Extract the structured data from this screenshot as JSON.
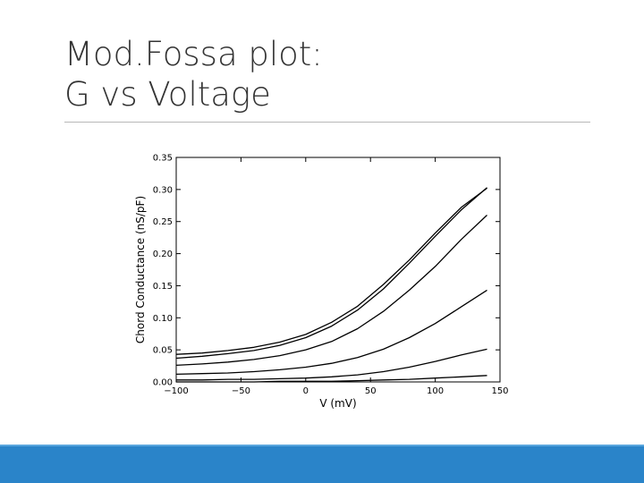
{
  "slide": {
    "title_line1": "Mod.Fossa plot:",
    "title_line2": "G vs Voltage",
    "footer_color": "#2a84c9"
  },
  "chart_data": {
    "type": "line",
    "title": "",
    "xlabel": "V (mV)",
    "ylabel": "Chord Conductance (nS/pF)",
    "xlim": [
      -100,
      150
    ],
    "ylim": [
      0.0,
      0.35
    ],
    "xticks": [
      -100,
      -50,
      0,
      50,
      100,
      150
    ],
    "xtick_labels": [
      "−100",
      "−50",
      "0",
      "50",
      "100",
      "150"
    ],
    "yticks": [
      0.0,
      0.05,
      0.1,
      0.15,
      0.2,
      0.25,
      0.3,
      0.35
    ],
    "ytick_labels": [
      "0.00",
      "0.05",
      "0.10",
      "0.15",
      "0.20",
      "0.25",
      "0.30",
      "0.35"
    ],
    "grid": false,
    "line_color": "#000000",
    "x": [
      -100,
      -80,
      -60,
      -40,
      -20,
      0,
      20,
      40,
      60,
      80,
      100,
      120,
      140
    ],
    "series": [
      {
        "values": [
          0.043,
          0.045,
          0.049,
          0.054,
          0.062,
          0.074,
          0.093,
          0.118,
          0.152,
          0.19,
          0.232,
          0.272,
          0.302
        ]
      },
      {
        "values": [
          0.037,
          0.04,
          0.044,
          0.049,
          0.057,
          0.069,
          0.087,
          0.112,
          0.145,
          0.185,
          0.227,
          0.268,
          0.303
        ]
      },
      {
        "values": [
          0.026,
          0.028,
          0.031,
          0.035,
          0.041,
          0.05,
          0.063,
          0.083,
          0.11,
          0.143,
          0.18,
          0.222,
          0.26
        ]
      },
      {
        "values": [
          0.012,
          0.013,
          0.014,
          0.016,
          0.019,
          0.023,
          0.029,
          0.038,
          0.051,
          0.069,
          0.091,
          0.117,
          0.143
        ]
      },
      {
        "values": [
          0.003,
          0.003,
          0.004,
          0.004,
          0.005,
          0.006,
          0.008,
          0.011,
          0.016,
          0.023,
          0.032,
          0.042,
          0.051
        ]
      },
      {
        "values": [
          0.0,
          0.0,
          0.0,
          0.0,
          0.001,
          0.001,
          0.001,
          0.002,
          0.003,
          0.004,
          0.006,
          0.008,
          0.01
        ]
      }
    ]
  }
}
